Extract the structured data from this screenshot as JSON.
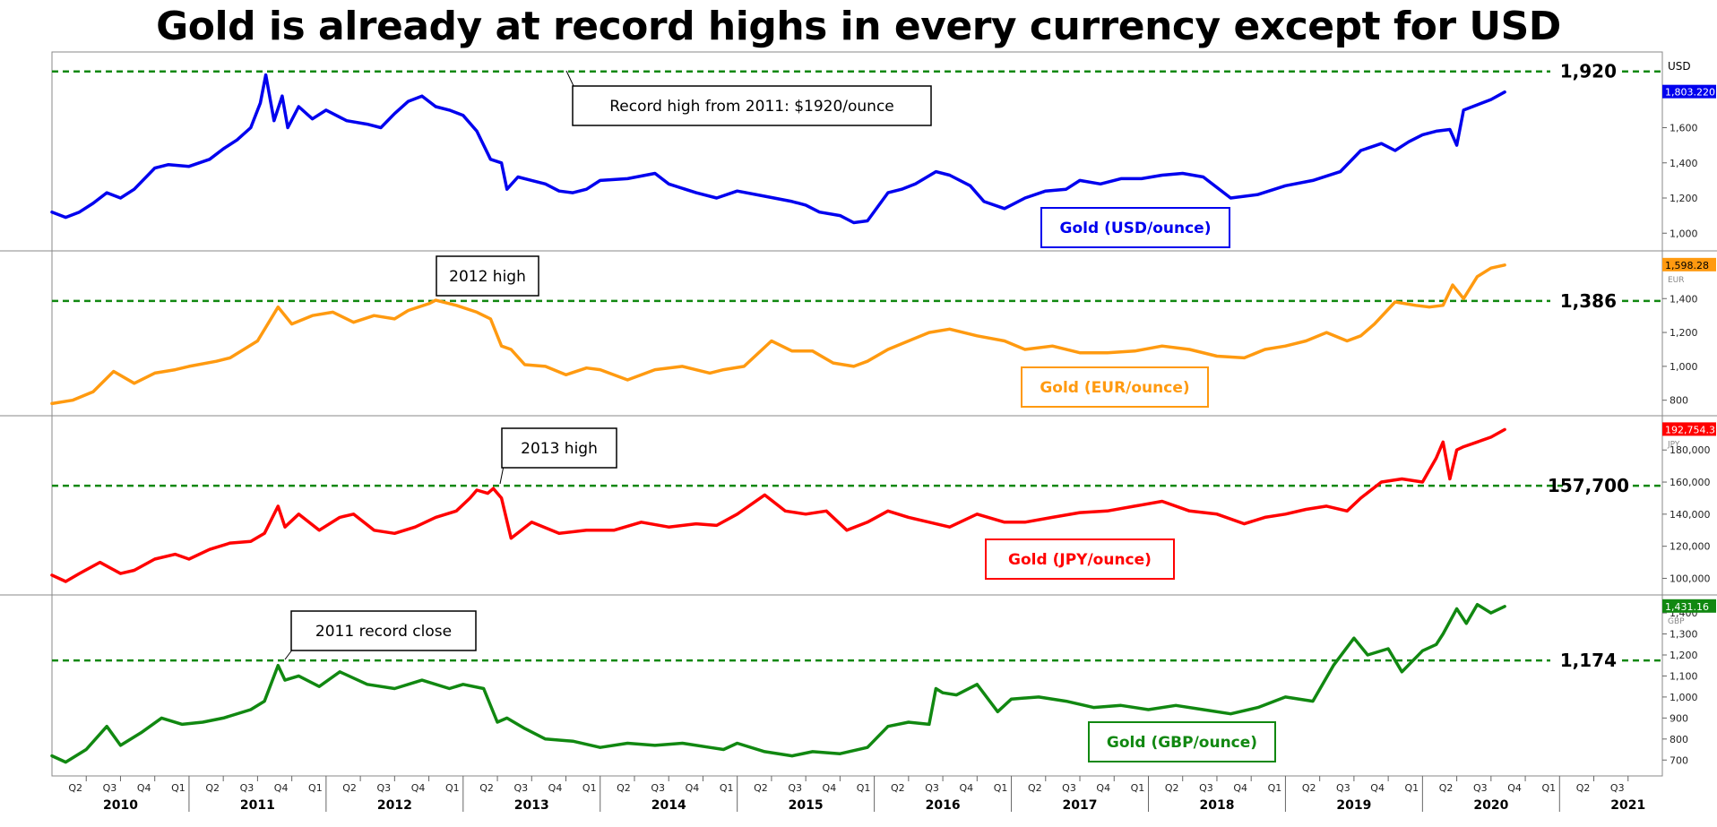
{
  "title": "Gold is already at record highs in every currency except for USD",
  "chart_data": [
    {
      "type": "line",
      "name": "usd-panel",
      "series_name": "Gold (USD/ounce)",
      "currency_label": "USD",
      "color": "#0000ee",
      "last_value_label": "1,803.220",
      "ylim": [
        930,
        2000
      ],
      "yticks": [
        1000,
        1200,
        1400,
        1600
      ],
      "ytick_labels": [
        "1,000",
        "1,200",
        "1,400",
        "1,600"
      ],
      "ref_level": 1920,
      "ref_label": "1,920",
      "annotation": "Record high from 2011: $1920/ounce",
      "x": [
        2010.0,
        2010.1,
        2010.2,
        2010.3,
        2010.4,
        2010.5,
        2010.6,
        2010.75,
        2010.85,
        2011.0,
        2011.15,
        2011.25,
        2011.35,
        2011.45,
        2011.52,
        2011.56,
        2011.62,
        2011.68,
        2011.72,
        2011.8,
        2011.9,
        2012.0,
        2012.15,
        2012.3,
        2012.4,
        2012.5,
        2012.6,
        2012.7,
        2012.8,
        2012.9,
        2013.0,
        2013.1,
        2013.2,
        2013.28,
        2013.32,
        2013.4,
        2013.5,
        2013.6,
        2013.7,
        2013.8,
        2013.9,
        2014.0,
        2014.2,
        2014.4,
        2014.5,
        2014.7,
        2014.85,
        2015.0,
        2015.2,
        2015.4,
        2015.5,
        2015.6,
        2015.75,
        2015.85,
        2015.95,
        2016.1,
        2016.2,
        2016.3,
        2016.45,
        2016.55,
        2016.7,
        2016.8,
        2016.95,
        2017.1,
        2017.25,
        2017.4,
        2017.5,
        2017.65,
        2017.8,
        2017.95,
        2018.1,
        2018.25,
        2018.4,
        2018.6,
        2018.8,
        2019.0,
        2019.2,
        2019.4,
        2019.5,
        2019.55,
        2019.7,
        2019.8,
        2019.9,
        2020.0,
        2020.1,
        2020.2,
        2020.25,
        2020.3,
        2020.4,
        2020.5,
        2020.6
      ],
      "values": [
        1120,
        1090,
        1120,
        1170,
        1230,
        1200,
        1250,
        1370,
        1390,
        1380,
        1420,
        1480,
        1530,
        1600,
        1740,
        1900,
        1640,
        1780,
        1600,
        1720,
        1650,
        1700,
        1640,
        1620,
        1600,
        1680,
        1750,
        1780,
        1720,
        1700,
        1670,
        1580,
        1420,
        1400,
        1250,
        1320,
        1300,
        1280,
        1240,
        1230,
        1250,
        1300,
        1310,
        1340,
        1280,
        1230,
        1200,
        1240,
        1210,
        1180,
        1160,
        1120,
        1100,
        1060,
        1070,
        1230,
        1250,
        1280,
        1350,
        1330,
        1270,
        1180,
        1140,
        1200,
        1240,
        1250,
        1300,
        1280,
        1310,
        1310,
        1330,
        1340,
        1320,
        1200,
        1220,
        1270,
        1300,
        1350,
        1430,
        1470,
        1510,
        1470,
        1520,
        1560,
        1580,
        1590,
        1500,
        1700,
        1730,
        1760,
        1803
      ]
    },
    {
      "type": "line",
      "name": "eur-panel",
      "series_name": "Gold (EUR/ounce)",
      "currency_label": "EUR",
      "color": "#ff9a10",
      "last_value_label": "1,598.28",
      "ylim": [
        740,
        1650
      ],
      "yticks": [
        800,
        1000,
        1200,
        1400
      ],
      "ytick_labels": [
        "800",
        "1,000",
        "1,200",
        "1,400"
      ],
      "ref_level": 1386,
      "ref_label": "1,386",
      "annotation": "2012 high",
      "x": [
        2010.0,
        2010.15,
        2010.3,
        2010.45,
        2010.6,
        2010.75,
        2010.9,
        2011.0,
        2011.2,
        2011.3,
        2011.5,
        2011.65,
        2011.75,
        2011.9,
        2012.05,
        2012.2,
        2012.35,
        2012.5,
        2012.6,
        2012.75,
        2012.8,
        2012.95,
        2013.1,
        2013.2,
        2013.28,
        2013.35,
        2013.45,
        2013.6,
        2013.75,
        2013.9,
        2014.0,
        2014.2,
        2014.4,
        2014.6,
        2014.8,
        2014.9,
        2015.05,
        2015.25,
        2015.4,
        2015.55,
        2015.7,
        2015.85,
        2015.95,
        2016.1,
        2016.25,
        2016.4,
        2016.55,
        2016.75,
        2016.95,
        2017.1,
        2017.3,
        2017.5,
        2017.7,
        2017.9,
        2018.1,
        2018.3,
        2018.5,
        2018.7,
        2018.85,
        2019.0,
        2019.15,
        2019.3,
        2019.45,
        2019.55,
        2019.65,
        2019.8,
        2019.95,
        2020.05,
        2020.15,
        2020.22,
        2020.3,
        2020.4,
        2020.5,
        2020.6
      ],
      "values": [
        780,
        800,
        850,
        970,
        900,
        960,
        980,
        1000,
        1030,
        1050,
        1150,
        1350,
        1250,
        1300,
        1320,
        1260,
        1300,
        1280,
        1330,
        1370,
        1390,
        1360,
        1320,
        1280,
        1120,
        1100,
        1010,
        1000,
        950,
        990,
        980,
        920,
        980,
        1000,
        960,
        980,
        1000,
        1150,
        1090,
        1090,
        1020,
        1000,
        1030,
        1100,
        1150,
        1200,
        1220,
        1180,
        1150,
        1100,
        1120,
        1080,
        1080,
        1090,
        1120,
        1100,
        1060,
        1050,
        1100,
        1120,
        1150,
        1200,
        1150,
        1180,
        1250,
        1380,
        1360,
        1350,
        1360,
        1480,
        1400,
        1530,
        1580,
        1598
      ]
    },
    {
      "type": "line",
      "name": "jpy-panel",
      "series_name": "Gold (JPY/ounce)",
      "currency_label": "JPY",
      "color": "#ff0000",
      "last_value_label": "192,754.3",
      "ylim": [
        93000,
        198000
      ],
      "yticks": [
        100000,
        120000,
        140000,
        160000,
        180000
      ],
      "ytick_labels": [
        "100,000",
        "120,000",
        "140,000",
        "160,000",
        "180,000"
      ],
      "ref_level": 157700,
      "ref_label": "157,700",
      "annotation": "2013 high",
      "x": [
        2010.0,
        2010.1,
        2010.2,
        2010.35,
        2010.5,
        2010.6,
        2010.75,
        2010.9,
        2011.0,
        2011.15,
        2011.3,
        2011.45,
        2011.55,
        2011.65,
        2011.7,
        2011.8,
        2011.95,
        2012.1,
        2012.2,
        2012.35,
        2012.5,
        2012.65,
        2012.8,
        2012.95,
        2013.05,
        2013.1,
        2013.18,
        2013.22,
        2013.28,
        2013.35,
        2013.5,
        2013.7,
        2013.9,
        2014.1,
        2014.3,
        2014.5,
        2014.7,
        2014.85,
        2015.0,
        2015.2,
        2015.35,
        2015.5,
        2015.65,
        2015.8,
        2015.95,
        2016.1,
        2016.25,
        2016.4,
        2016.55,
        2016.75,
        2016.95,
        2017.1,
        2017.3,
        2017.5,
        2017.7,
        2017.9,
        2018.1,
        2018.3,
        2018.5,
        2018.7,
        2018.85,
        2019.0,
        2019.15,
        2019.3,
        2019.45,
        2019.55,
        2019.7,
        2019.85,
        2020.0,
        2020.1,
        2020.15,
        2020.2,
        2020.25,
        2020.3,
        2020.4,
        2020.5,
        2020.6
      ],
      "values": [
        102000,
        98000,
        103000,
        110000,
        103000,
        105000,
        112000,
        115000,
        112000,
        118000,
        122000,
        123000,
        128000,
        145000,
        132000,
        140000,
        130000,
        138000,
        140000,
        130000,
        128000,
        132000,
        138000,
        142000,
        150000,
        155000,
        153000,
        156000,
        150000,
        125000,
        135000,
        128000,
        130000,
        130000,
        135000,
        132000,
        134000,
        133000,
        140000,
        152000,
        142000,
        140000,
        142000,
        130000,
        135000,
        142000,
        138000,
        135000,
        132000,
        140000,
        135000,
        135000,
        138000,
        141000,
        142000,
        145000,
        148000,
        142000,
        140000,
        134000,
        138000,
        140000,
        143000,
        145000,
        142000,
        150000,
        160000,
        162000,
        160000,
        175000,
        185000,
        162000,
        180000,
        182000,
        185000,
        188000,
        192754
      ]
    },
    {
      "type": "line",
      "name": "gbp-panel",
      "series_name": "Gold (GBP/ounce)",
      "currency_label": "GBP",
      "color": "#118811",
      "last_value_label": "1,431.16",
      "ylim": [
        650,
        1460
      ],
      "yticks": [
        700,
        800,
        900,
        1000,
        1100,
        1200,
        1300,
        1400
      ],
      "ytick_labels": [
        "700",
        "800",
        "900",
        "1,000",
        "1,100",
        "1,200",
        "1,300",
        "1,400"
      ],
      "ref_level": 1174,
      "ref_label": "1,174",
      "annotation": "2011 record close",
      "x": [
        2010.0,
        2010.1,
        2010.25,
        2010.4,
        2010.5,
        2010.65,
        2010.8,
        2010.95,
        2011.1,
        2011.25,
        2011.45,
        2011.55,
        2011.65,
        2011.7,
        2011.8,
        2011.95,
        2012.1,
        2012.3,
        2012.5,
        2012.7,
        2012.9,
        2013.0,
        2013.15,
        2013.25,
        2013.32,
        2013.45,
        2013.6,
        2013.8,
        2014.0,
        2014.2,
        2014.4,
        2014.6,
        2014.8,
        2014.9,
        2015.0,
        2015.2,
        2015.4,
        2015.55,
        2015.75,
        2015.95,
        2016.1,
        2016.25,
        2016.4,
        2016.45,
        2016.5,
        2016.6,
        2016.75,
        2016.9,
        2017.0,
        2017.2,
        2017.4,
        2017.6,
        2017.8,
        2018.0,
        2018.2,
        2018.4,
        2018.6,
        2018.8,
        2019.0,
        2019.2,
        2019.35,
        2019.5,
        2019.6,
        2019.75,
        2019.85,
        2020.0,
        2020.1,
        2020.15,
        2020.25,
        2020.32,
        2020.4,
        2020.5,
        2020.6
      ],
      "values": [
        720,
        690,
        750,
        860,
        770,
        830,
        900,
        870,
        880,
        900,
        940,
        980,
        1150,
        1080,
        1100,
        1050,
        1120,
        1060,
        1040,
        1080,
        1040,
        1060,
        1040,
        880,
        900,
        850,
        800,
        790,
        760,
        780,
        770,
        780,
        760,
        750,
        780,
        740,
        720,
        740,
        730,
        760,
        860,
        880,
        870,
        1040,
        1020,
        1010,
        1060,
        930,
        990,
        1000,
        980,
        950,
        960,
        940,
        960,
        940,
        920,
        950,
        1000,
        980,
        1150,
        1280,
        1200,
        1230,
        1120,
        1220,
        1250,
        1300,
        1420,
        1350,
        1440,
        1400,
        1431
      ]
    }
  ],
  "x_axis": {
    "quarter_labels": [
      "Q2",
      "Q3",
      "Q4",
      "Q1",
      "Q2",
      "Q3",
      "Q4",
      "Q1",
      "Q2",
      "Q3",
      "Q4",
      "Q1",
      "Q2",
      "Q3",
      "Q4",
      "Q1",
      "Q2",
      "Q3",
      "Q4",
      "Q1",
      "Q2",
      "Q3",
      "Q4",
      "Q1",
      "Q2",
      "Q3",
      "Q4",
      "Q1",
      "Q2",
      "Q3",
      "Q4",
      "Q1",
      "Q2",
      "Q3",
      "Q4",
      "Q1",
      "Q2",
      "Q3",
      "Q4",
      "Q1",
      "Q2",
      "Q3",
      "Q4",
      "Q1",
      "Q2",
      "Q3"
    ],
    "years": [
      "2010",
      "2011",
      "2012",
      "2013",
      "2014",
      "2015",
      "2016",
      "2017",
      "2018",
      "2019",
      "2020",
      "2021"
    ],
    "range": [
      2010.0,
      2021.75
    ]
  }
}
